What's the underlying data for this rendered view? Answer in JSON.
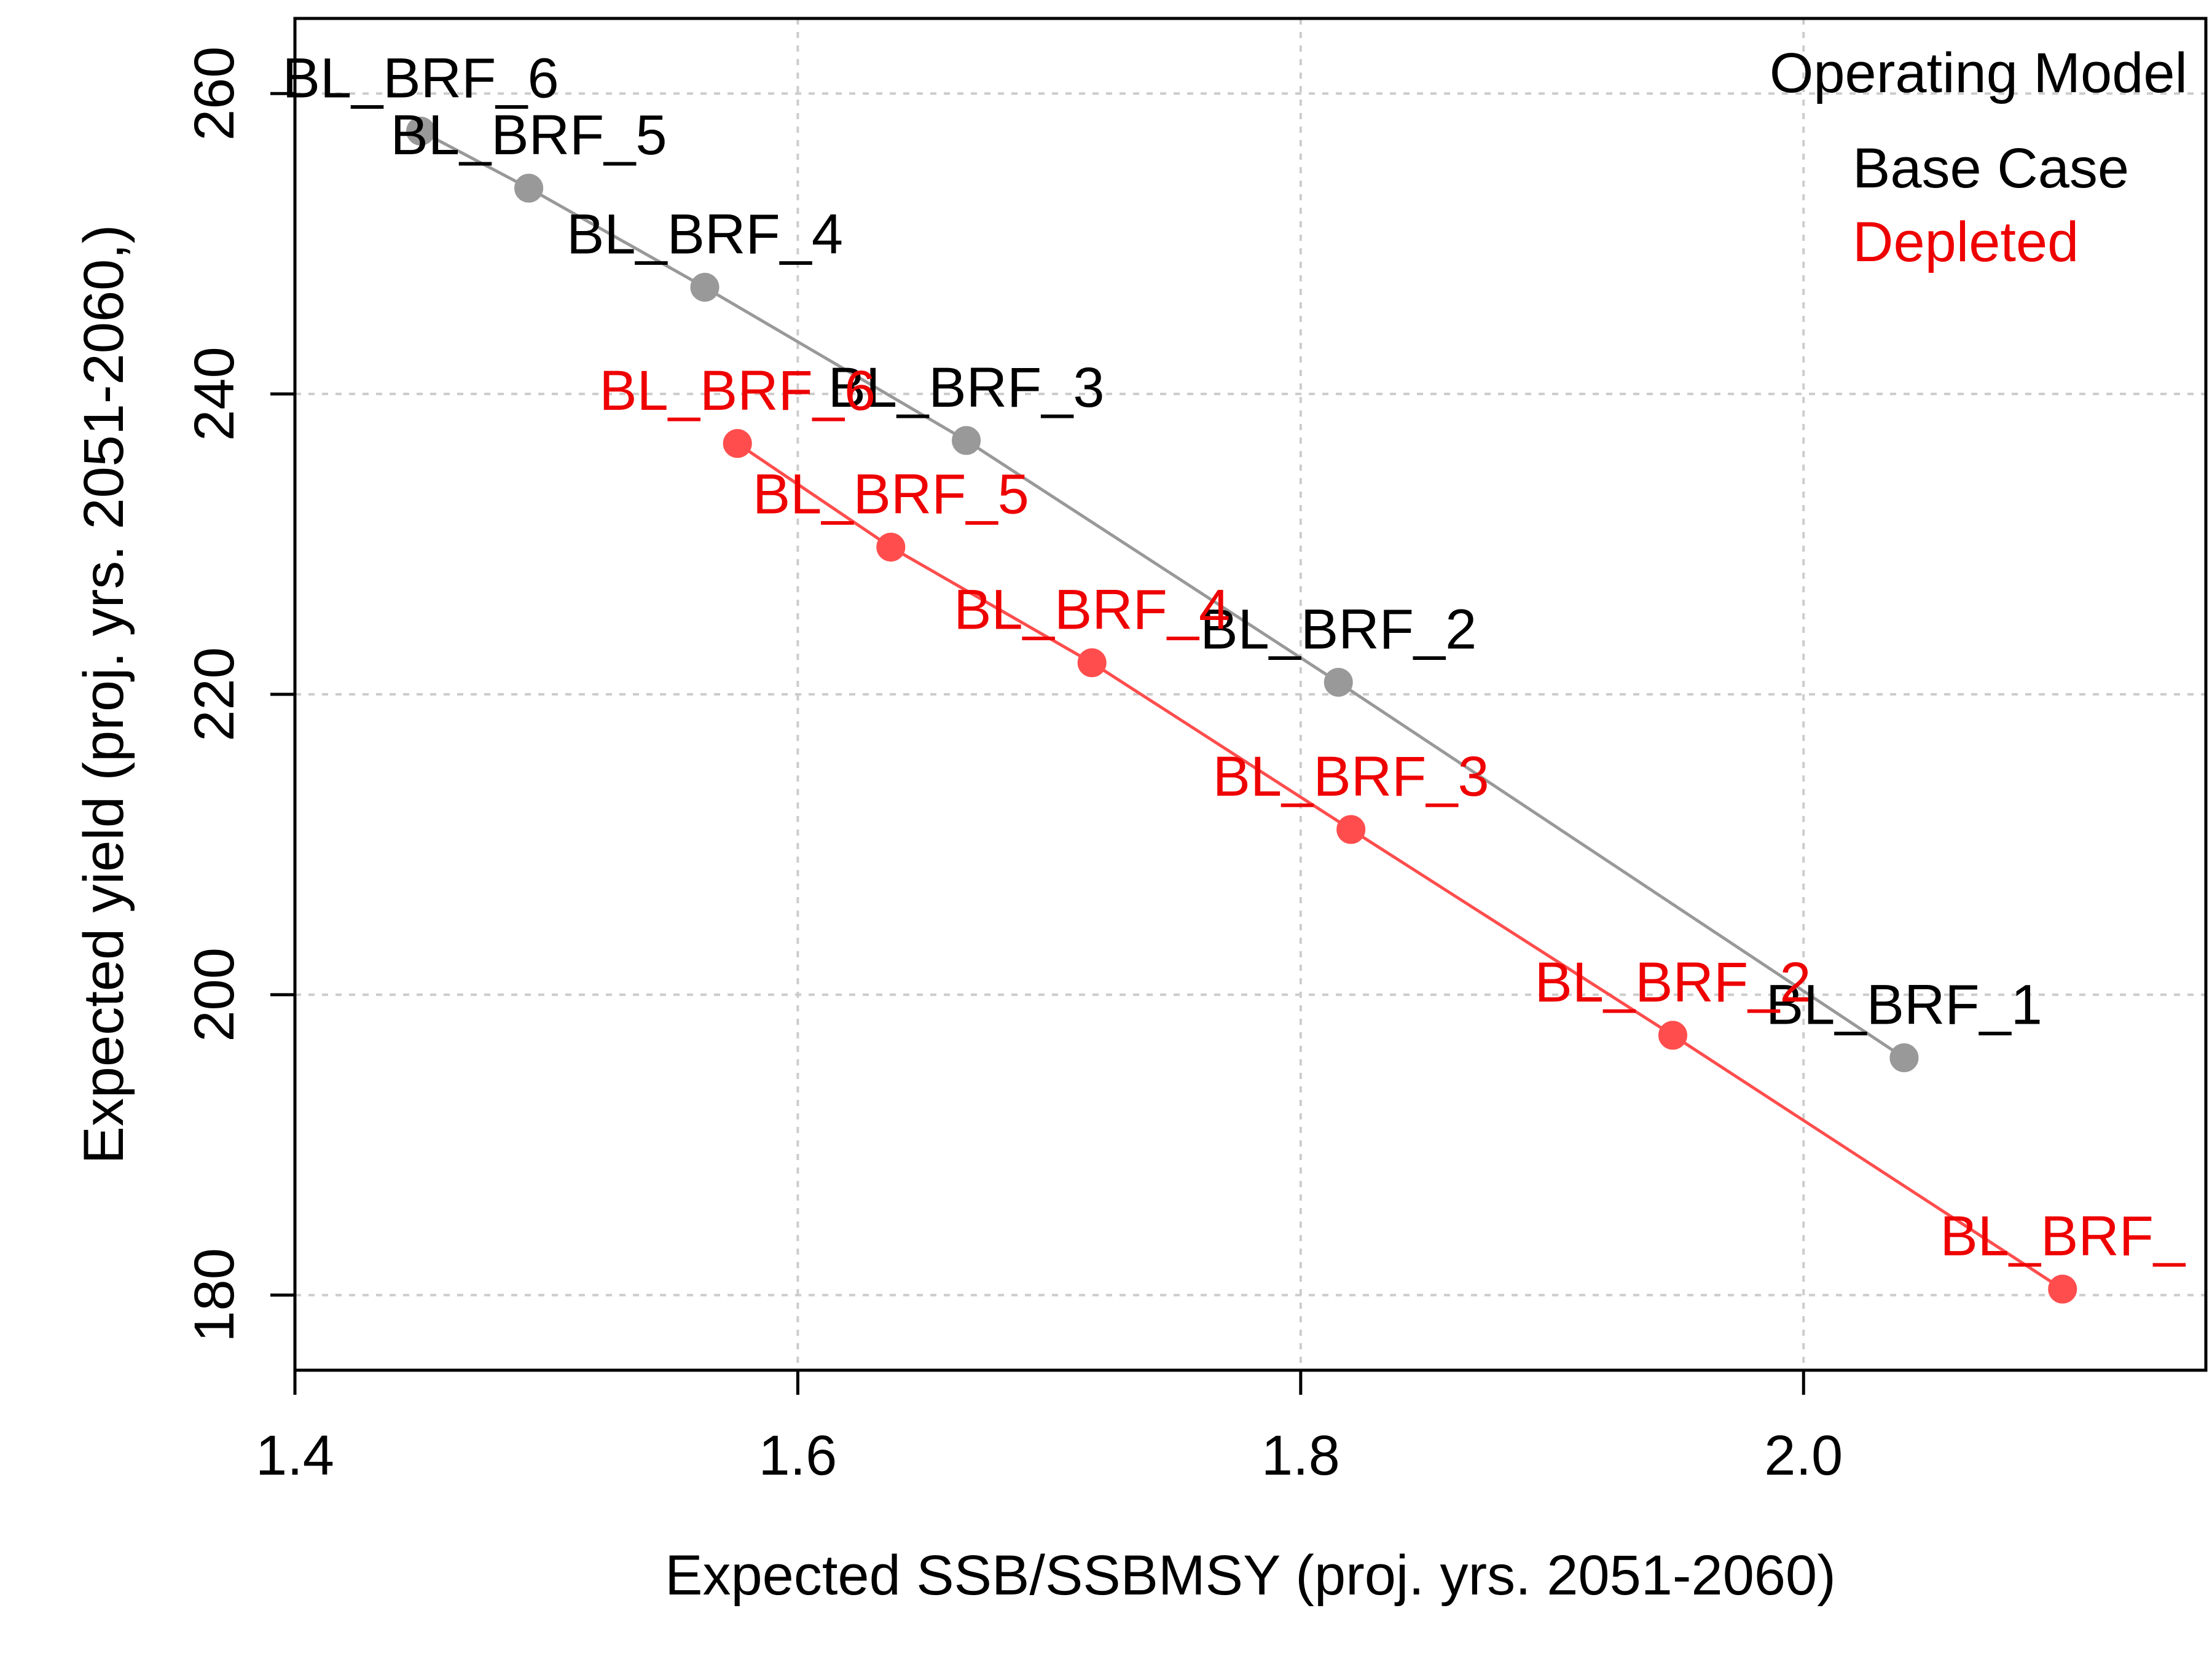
{
  "chart_data": {
    "type": "scatter",
    "xlabel": "Expected SSB/SSBMSY (proj. yrs. 2051-2060)",
    "ylabel": "Expected yield (proj. yrs. 2051-2060,)",
    "xlim": [
      1.4,
      2.16
    ],
    "ylim": [
      175,
      265
    ],
    "xticks": [
      1.4,
      1.6,
      1.8,
      2.0
    ],
    "xtick_labels": [
      "1.4",
      "1.6",
      "1.8",
      "2.0"
    ],
    "yticks": [
      180,
      200,
      220,
      240,
      260
    ],
    "ytick_labels": [
      "180",
      "200",
      "220",
      "240",
      "260"
    ],
    "grid": true,
    "legend_title": "Operating Model",
    "legend_placement": "top-right",
    "series": [
      {
        "name": "Base Case",
        "color": "#999999",
        "label_color": "#000000",
        "points": [
          {
            "label": "BL_BRF_6",
            "x": 1.45,
            "y": 257.5
          },
          {
            "label": "BL_BRF_5",
            "x": 1.493,
            "y": 253.7
          },
          {
            "label": "BL_BRF_4",
            "x": 1.563,
            "y": 247.1
          },
          {
            "label": "BL_BRF_3",
            "x": 1.667,
            "y": 236.9
          },
          {
            "label": "BL_BRF_2",
            "x": 1.815,
            "y": 220.8
          },
          {
            "label": "BL_BRF_1",
            "x": 2.04,
            "y": 195.8
          }
        ]
      },
      {
        "name": "Depleted",
        "color": "#ff4d4d",
        "label_color": "#ee0000",
        "points": [
          {
            "label": "BL_BRF_6",
            "x": 1.576,
            "y": 236.7
          },
          {
            "label": "BL_BRF_5",
            "x": 1.637,
            "y": 229.8
          },
          {
            "label": "BL_BRF_4",
            "x": 1.717,
            "y": 222.1
          },
          {
            "label": "BL_BRF_3",
            "x": 1.82,
            "y": 211.0
          },
          {
            "label": "BL_BRF_2",
            "x": 1.948,
            "y": 197.3
          },
          {
            "label": "BL_BRF_",
            "x": 2.103,
            "y": 180.4
          }
        ]
      }
    ]
  }
}
